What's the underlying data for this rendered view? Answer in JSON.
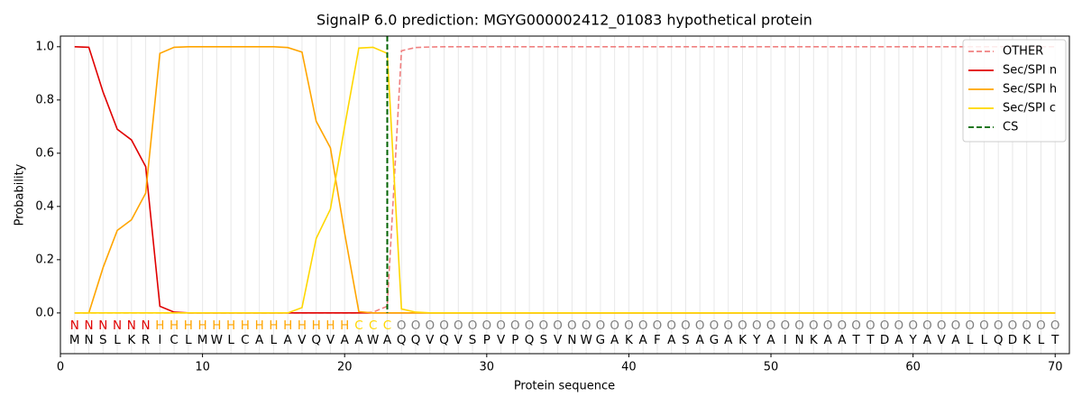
{
  "chart_data": {
    "type": "line",
    "title": "SignalP 6.0 prediction: MGYG000002412_01083 hypothetical protein",
    "x_label": "Protein sequence",
    "y_label": "Probability",
    "x": [
      1,
      2,
      3,
      4,
      5,
      6,
      7,
      8,
      9,
      10,
      11,
      12,
      13,
      14,
      15,
      16,
      17,
      18,
      19,
      20,
      21,
      22,
      23,
      24,
      25,
      26,
      27,
      28,
      29,
      30,
      31,
      32,
      33,
      34,
      35,
      36,
      37,
      38,
      39,
      40,
      41,
      42,
      43,
      44,
      45,
      46,
      47,
      48,
      49,
      50,
      51,
      52,
      53,
      54,
      55,
      56,
      57,
      58,
      59,
      60,
      61,
      62,
      63,
      64,
      65,
      66,
      67,
      68,
      69,
      70
    ],
    "xlim": [
      0,
      71
    ],
    "xticks": [
      0,
      10,
      20,
      30,
      40,
      50,
      60,
      70
    ],
    "ylim": [
      -0.153,
      1.04
    ],
    "yticks": [
      {
        "value": 0,
        "label": "0.0"
      },
      0.2,
      0.4,
      0.6,
      0.8,
      {
        "value": 1,
        "label": "1.0"
      }
    ],
    "legend": "upper right",
    "series": [
      {
        "name": "OTHER",
        "color": "#f08080",
        "dashed": true,
        "values": [
          0,
          0,
          0,
          0,
          0,
          0,
          0,
          0,
          0,
          0,
          0,
          0,
          0,
          0,
          0,
          0,
          0,
          0,
          0,
          0,
          0,
          0.003,
          0.025,
          0.985,
          0.997,
          0.999,
          1,
          1,
          1,
          1,
          1,
          1,
          1,
          1,
          1,
          1,
          1,
          1,
          1,
          1,
          1,
          1,
          1,
          1,
          1,
          1,
          1,
          1,
          1,
          1,
          1,
          1,
          1,
          1,
          1,
          1,
          1,
          1,
          1,
          1,
          1,
          1,
          1,
          1,
          1,
          1,
          1,
          1,
          1,
          1
        ]
      },
      {
        "name": "Sec/SPI n",
        "color": "#e00000",
        "dashed": false,
        "values": [
          1.0,
          0.998,
          0.83,
          0.69,
          0.65,
          0.55,
          0.025,
          0.003,
          0,
          0,
          0,
          0,
          0,
          0,
          0,
          0,
          0,
          0,
          0,
          0,
          0,
          0,
          0,
          0,
          0,
          0,
          0,
          0,
          0,
          0,
          0,
          0,
          0,
          0,
          0,
          0,
          0,
          0,
          0,
          0,
          0,
          0,
          0,
          0,
          0,
          0,
          0,
          0,
          0,
          0,
          0,
          0,
          0,
          0,
          0,
          0,
          0,
          0,
          0,
          0,
          0,
          0,
          0,
          0,
          0,
          0,
          0,
          0,
          0,
          0
        ]
      },
      {
        "name": "Sec/SPI h",
        "color": "#ffa500",
        "dashed": false,
        "values": [
          0,
          0,
          0.17,
          0.31,
          0.35,
          0.45,
          0.975,
          0.998,
          1,
          1,
          1,
          1,
          1,
          1,
          1,
          0.997,
          0.98,
          0.72,
          0.62,
          0.3,
          0.005,
          0,
          0,
          0,
          0,
          0,
          0,
          0,
          0,
          0,
          0,
          0,
          0,
          0,
          0,
          0,
          0,
          0,
          0,
          0,
          0,
          0,
          0,
          0,
          0,
          0,
          0,
          0,
          0,
          0,
          0,
          0,
          0,
          0,
          0,
          0,
          0,
          0,
          0,
          0,
          0,
          0,
          0,
          0,
          0,
          0,
          0,
          0,
          0,
          0
        ]
      },
      {
        "name": "Sec/SPI c",
        "color": "#ffd700",
        "dashed": false,
        "values": [
          0,
          0,
          0,
          0,
          0,
          0,
          0,
          0,
          0,
          0,
          0,
          0,
          0,
          0,
          0,
          0,
          0.02,
          0.28,
          0.39,
          0.7,
          0.995,
          0.998,
          0.975,
          0.015,
          0.003,
          0,
          0,
          0,
          0,
          0,
          0,
          0,
          0,
          0,
          0,
          0,
          0,
          0,
          0,
          0,
          0,
          0,
          0,
          0,
          0,
          0,
          0,
          0,
          0,
          0,
          0,
          0,
          0,
          0,
          0,
          0,
          0,
          0,
          0,
          0,
          0,
          0,
          0,
          0,
          0,
          0,
          0,
          0,
          0,
          0
        ]
      }
    ],
    "cs": {
      "name": "CS",
      "position": 23,
      "color": "#006400"
    },
    "sequence": [
      "M",
      "N",
      "S",
      "L",
      "K",
      "R",
      "I",
      "C",
      "L",
      "M",
      "W",
      "L",
      "C",
      "A",
      "L",
      "A",
      "V",
      "Q",
      "V",
      "A",
      "A",
      "W",
      "A",
      "Q",
      "Q",
      "V",
      "Q",
      "V",
      "S",
      "P",
      "V",
      "P",
      "Q",
      "S",
      "V",
      "N",
      "W",
      "G",
      "A",
      "K",
      "A",
      "F",
      "A",
      "S",
      "A",
      "G",
      "A",
      "K",
      "Y",
      "A",
      "I",
      "N",
      "K",
      "A",
      "A",
      "T",
      "T",
      "D",
      "A",
      "Y",
      "A",
      "V",
      "A",
      "L",
      "L",
      "Q",
      "D",
      "K",
      "L",
      "T"
    ],
    "regions": [
      "N",
      "N",
      "N",
      "N",
      "N",
      "N",
      "H",
      "H",
      "H",
      "H",
      "H",
      "H",
      "H",
      "H",
      "H",
      "H",
      "H",
      "H",
      "H",
      "H",
      "C",
      "C",
      "C",
      "O",
      "O",
      "O",
      "O",
      "O",
      "O",
      "O",
      "O",
      "O",
      "O",
      "O",
      "O",
      "O",
      "O",
      "O",
      "O",
      "O",
      "O",
      "O",
      "O",
      "O",
      "O",
      "O",
      "O",
      "O",
      "O",
      "O",
      "O",
      "O",
      "O",
      "O",
      "O",
      "O",
      "O",
      "O",
      "O",
      "O",
      "O",
      "O",
      "O",
      "O",
      "O",
      "O",
      "O",
      "O",
      "O",
      "O"
    ],
    "region_colors": {
      "N": "#e00000",
      "H": "#ffa500",
      "C": "#ffd700",
      "O": "#808080"
    }
  }
}
